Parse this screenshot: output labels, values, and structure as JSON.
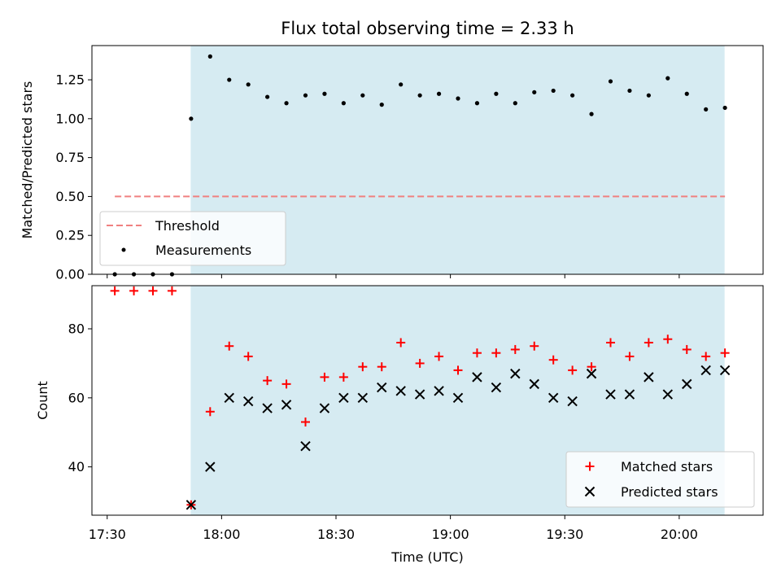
{
  "chart_data": [
    {
      "type": "scatter",
      "title": "Flux total observing time = 2.33 h",
      "ylabel": "Matched/Predicted stars",
      "xlabel": "",
      "ylim": [
        0,
        1.47
      ],
      "yticks": [
        0.0,
        0.25,
        0.5,
        0.75,
        1.0,
        1.25
      ],
      "ytick_labels": [
        "0.00",
        "0.25",
        "0.50",
        "0.75",
        "1.00",
        "1.25"
      ],
      "shaded_region_minutes": [
        1071.9,
        1211.9
      ],
      "threshold": {
        "name": "Threshold",
        "value": 0.5,
        "x_range_minutes": [
          1052,
          1212
        ],
        "color": "#f08080"
      },
      "series": [
        {
          "name": "Measurements",
          "color": "#000000",
          "x_minutes": [
            1052,
            1057,
            1062,
            1067,
            1072,
            1077,
            1082,
            1087,
            1092,
            1097,
            1102,
            1107,
            1112,
            1117,
            1122,
            1127,
            1132,
            1137,
            1142,
            1147,
            1152,
            1157,
            1162,
            1167,
            1172,
            1177,
            1182,
            1187,
            1192,
            1197,
            1202,
            1207,
            1212
          ],
          "values": [
            0.0,
            0.0,
            0.0,
            0.0,
            1.0,
            1.4,
            1.25,
            1.22,
            1.14,
            1.1,
            1.15,
            1.16,
            1.1,
            1.15,
            1.09,
            1.22,
            1.15,
            1.16,
            1.13,
            1.1,
            1.16,
            1.1,
            1.17,
            1.18,
            1.15,
            1.03,
            1.24,
            1.18,
            1.15,
            1.26,
            1.16,
            1.06,
            1.07
          ]
        }
      ],
      "legend": [
        "Threshold",
        "Measurements"
      ],
      "legend_loc": "lower-left"
    },
    {
      "type": "scatter",
      "title": "",
      "ylabel": "Count",
      "xlabel": "Time (UTC)",
      "ylim": [
        26,
        92.5
      ],
      "yticks": [
        40,
        60,
        80
      ],
      "ytick_labels": [
        "40",
        "60",
        "80"
      ],
      "xlim_minutes": [
        1046,
        1222
      ],
      "xticks_minutes": [
        1050,
        1080,
        1110,
        1140,
        1170,
        1200
      ],
      "xtick_labels": [
        "17:30",
        "18:00",
        "18:30",
        "19:00",
        "19:30",
        "20:00"
      ],
      "shaded_region_minutes": [
        1071.9,
        1211.9
      ],
      "series": [
        {
          "name": "Matched stars",
          "marker": "plus",
          "color": "#ff0000",
          "x_minutes": [
            1052,
            1057,
            1062,
            1067,
            1072,
            1077,
            1082,
            1087,
            1092,
            1097,
            1102,
            1107,
            1112,
            1117,
            1122,
            1127,
            1132,
            1137,
            1142,
            1147,
            1152,
            1157,
            1162,
            1167,
            1172,
            1177,
            1182,
            1187,
            1192,
            1197,
            1202,
            1207,
            1212
          ],
          "values": [
            91,
            91,
            91,
            91,
            29,
            56,
            75,
            72,
            65,
            64,
            53,
            66,
            66,
            69,
            69,
            76,
            70,
            72,
            68,
            73,
            73,
            74,
            75,
            71,
            68,
            69,
            76,
            72,
            76,
            77,
            74,
            72,
            73
          ]
        },
        {
          "name": "Predicted stars",
          "marker": "x",
          "color": "#000000",
          "x_minutes": [
            1072,
            1077,
            1082,
            1087,
            1092,
            1097,
            1102,
            1107,
            1112,
            1117,
            1122,
            1127,
            1132,
            1137,
            1142,
            1147,
            1152,
            1157,
            1162,
            1167,
            1172,
            1177,
            1182,
            1187,
            1192,
            1197,
            1202,
            1207,
            1212
          ],
          "values": [
            29,
            40,
            60,
            59,
            57,
            58,
            46,
            57,
            60,
            60,
            63,
            62,
            61,
            62,
            60,
            66,
            63,
            67,
            64,
            60,
            59,
            67,
            61,
            61,
            66,
            61,
            64,
            68,
            68
          ]
        }
      ],
      "legend": [
        "Matched stars",
        "Predicted stars"
      ],
      "legend_loc": "lower-right"
    }
  ]
}
